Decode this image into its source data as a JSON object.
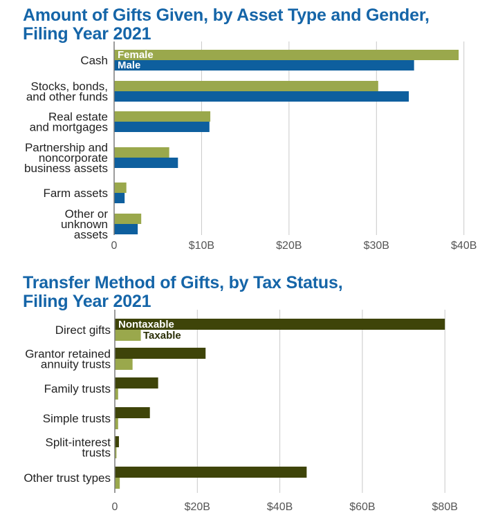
{
  "chart_data": [
    {
      "type": "bar",
      "orientation": "horizontal",
      "title_lines": [
        "Amount of Gifts Given, by Asset Type and Gender,",
        "Filing Year 2021"
      ],
      "categories": [
        [
          "Cash"
        ],
        [
          "Stocks, bonds,",
          "and other funds"
        ],
        [
          "Real estate",
          "and mortgages"
        ],
        [
          "Partnership and",
          "noncorporate",
          "business assets"
        ],
        [
          "Farm assets"
        ],
        [
          "Other or",
          "unknown",
          "assets"
        ]
      ],
      "series": [
        {
          "name": "Female",
          "color": "#9aa84c",
          "values": [
            39.4,
            30.2,
            11.0,
            6.3,
            1.4,
            3.1
          ]
        },
        {
          "name": "Male",
          "color": "#0e5f9e",
          "values": [
            34.3,
            33.7,
            10.9,
            7.3,
            1.2,
            2.7
          ]
        }
      ],
      "xlim": [
        0,
        42
      ],
      "x_ticks": [
        0,
        10,
        20,
        30,
        40
      ],
      "x_tick_labels": [
        "0",
        "$10B",
        "$20B",
        "$30B",
        "$40B"
      ],
      "grid": true,
      "legend": "inline labels on first bar pair",
      "label_colors": [
        "#ffffff",
        "#ffffff"
      ]
    },
    {
      "type": "bar",
      "orientation": "horizontal",
      "title_lines": [
        "Transfer Method of Gifts, by Tax Status,",
        "Filing Year 2021"
      ],
      "categories": [
        [
          "Direct gifts"
        ],
        [
          "Grantor retained",
          "annuity trusts"
        ],
        [
          "Family trusts"
        ],
        [
          "Simple trusts"
        ],
        [
          "Split-interest",
          "trusts"
        ],
        [
          "Other trust types"
        ]
      ],
      "series": [
        {
          "name": "Nontaxable",
          "color": "#3e4409",
          "values": [
            80.0,
            22.0,
            10.5,
            8.5,
            1.0,
            46.5
          ]
        },
        {
          "name": "Taxable",
          "color": "#9aa84c",
          "values": [
            6.3,
            4.3,
            0.8,
            0.8,
            0.4,
            1.2
          ]
        }
      ],
      "xlim": [
        0,
        86
      ],
      "x_ticks": [
        0,
        20,
        40,
        60,
        80
      ],
      "x_tick_labels": [
        "0",
        "$20B",
        "$40B",
        "$60B",
        "$80B"
      ],
      "grid": true,
      "legend": "inline labels on first bar pair",
      "label_colors": [
        "#ffffff",
        "#2a2e06"
      ]
    }
  ]
}
